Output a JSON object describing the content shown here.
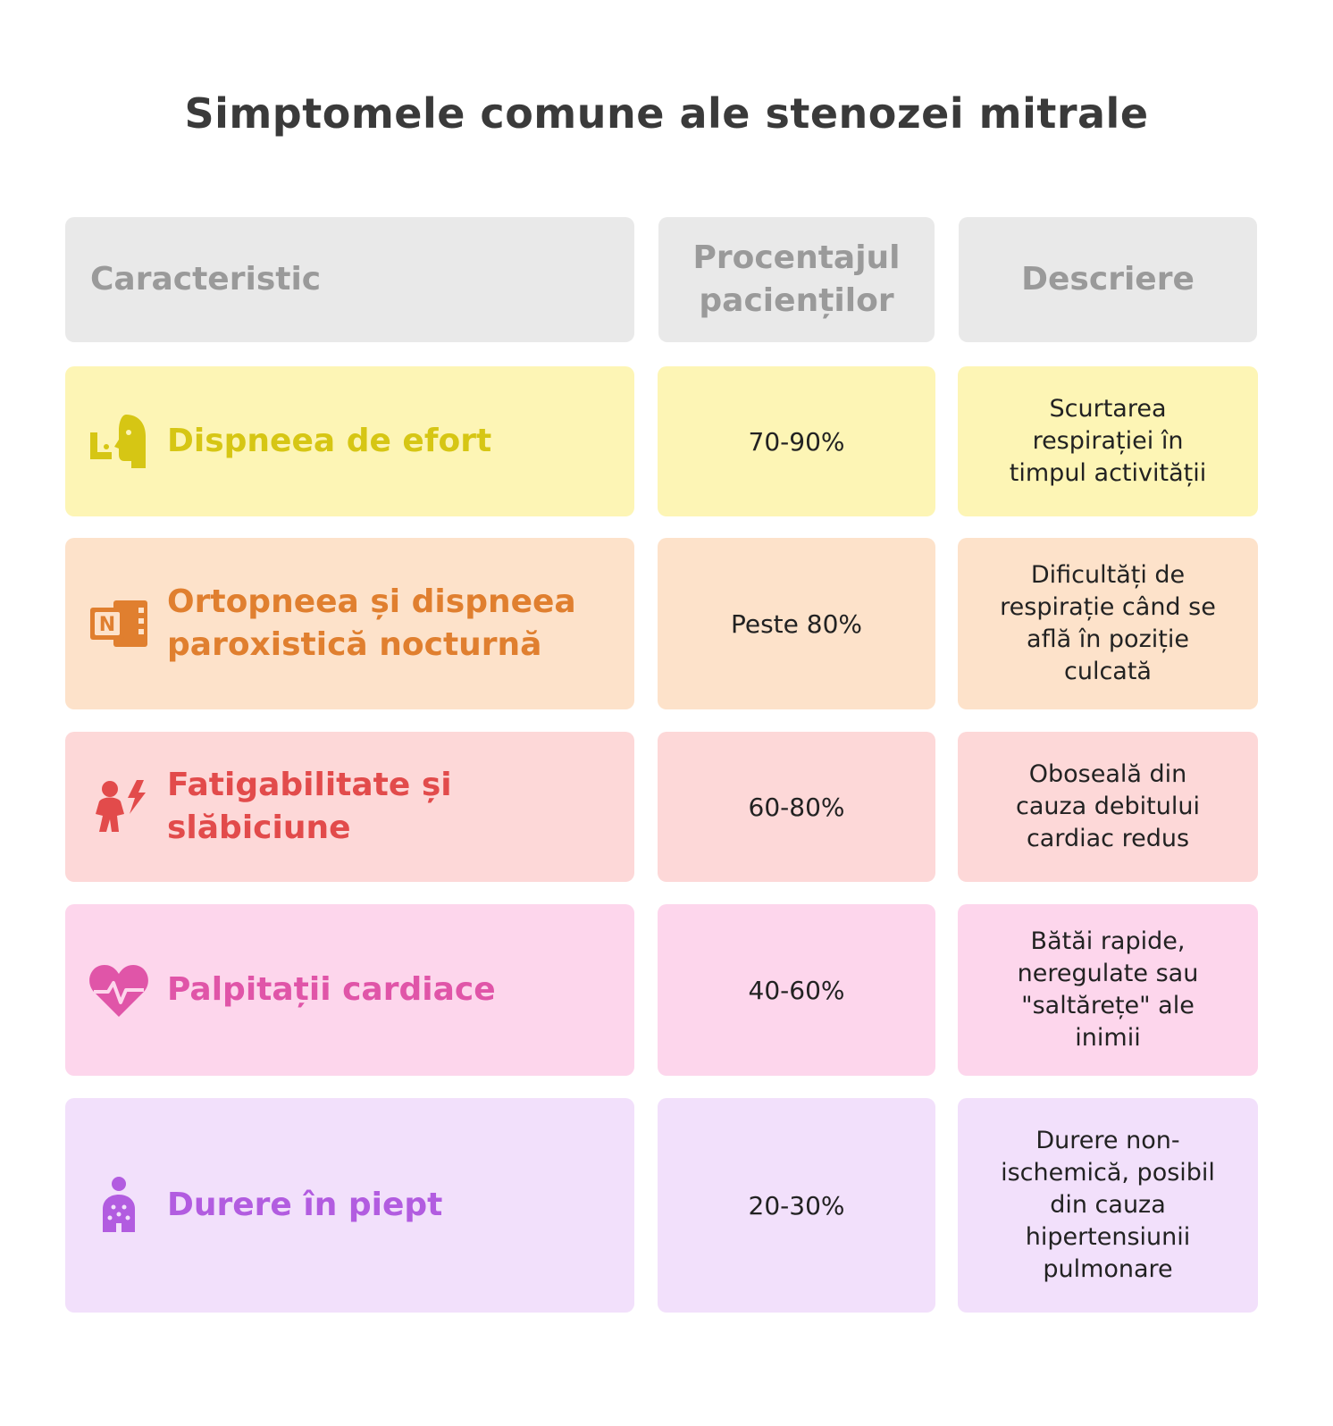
{
  "title": "Simptomele comune ale stenozei mitrale",
  "header": {
    "col1": "Caracteristic",
    "col2": "Procentajul pacienților",
    "col3": "Descriere"
  },
  "rows": [
    {
      "name": "Dispneea de efort",
      "percent": "70-90%",
      "description": "Scurtarea respirației în timpul activității",
      "icon": "person-breathing-icon",
      "color": "#d6c614",
      "background": "#fdf5b5"
    },
    {
      "name": "Ortopneea și dispneea paroxistică nocturnă",
      "percent": "Peste 80%",
      "description": "Dificultăți de respirație când se află în poziție culcată",
      "icon": "notebook-icon",
      "color": "#e07f2f",
      "background": "#fde2ca"
    },
    {
      "name": "Fatigabilitate și slăbiciune",
      "percent": "60-80%",
      "description": "Oboseală din cauza debitului cardiac redus",
      "icon": "tired-person-icon",
      "color": "#e24b4b",
      "background": "#fdd8d8"
    },
    {
      "name": "Palpitații cardiace",
      "percent": "40-60%",
      "description": "Bătăi rapide, neregulate sau \"saltărețe\" ale inimii",
      "icon": "heart-pulse-icon",
      "color": "#e055a8",
      "background": "#fdd6ec"
    },
    {
      "name": "Durere în piept",
      "percent": "20-30%",
      "description": "Durere non-ischemică, posibil din cauza hipertensiunii pulmonare",
      "icon": "person-chest-icon",
      "color": "#b25ce0",
      "background": "#f2e0fb"
    }
  ]
}
